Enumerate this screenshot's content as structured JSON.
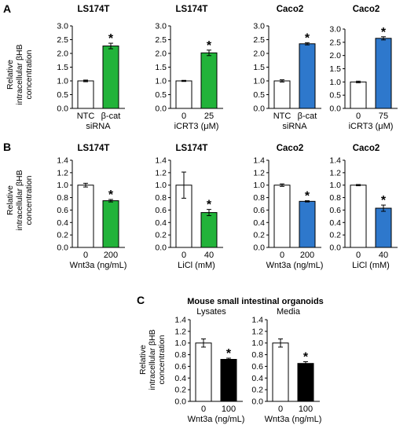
{
  "figure": {
    "panel_letters": [
      "A",
      "B",
      "C"
    ],
    "ylabel_lines": [
      "Relative",
      "intracellular βHB",
      "concentration"
    ],
    "panel_c_title": "Mouse small intestinal organoids"
  },
  "chart_data": [
    {
      "panel": "A",
      "type": "bar",
      "title": "LS174T",
      "subtitle": "",
      "ylim": [
        0,
        3.0
      ],
      "yticks": [
        "0.0",
        "0.5",
        "1.0",
        "1.5",
        "2.0",
        "2.5",
        "3.0"
      ],
      "categories": [
        "NTC",
        "β-cat"
      ],
      "xlabel": "siRNA",
      "values": [
        1.0,
        2.27
      ],
      "errors": [
        0.03,
        0.1
      ],
      "colors": [
        "#ffffff",
        "#22b33a"
      ],
      "significance": [
        false,
        true
      ]
    },
    {
      "panel": "A",
      "type": "bar",
      "title": "LS174T",
      "subtitle": "",
      "ylim": [
        0,
        3.0
      ],
      "yticks": [
        "0.0",
        "0.5",
        "1.0",
        "1.5",
        "2.0",
        "2.5",
        "3.0"
      ],
      "categories": [
        "0",
        "25"
      ],
      "xlabel": "iCRT3 (μM)",
      "values": [
        1.0,
        2.02
      ],
      "errors": [
        0.02,
        0.1
      ],
      "colors": [
        "#ffffff",
        "#22b33a"
      ],
      "significance": [
        false,
        true
      ]
    },
    {
      "panel": "A",
      "type": "bar",
      "title": "Caco2",
      "subtitle": "",
      "ylim": [
        0,
        3.0
      ],
      "yticks": [
        "0.0",
        "0.5",
        "1.0",
        "1.5",
        "2.0",
        "2.5",
        "3.0"
      ],
      "categories": [
        "NTC",
        "β-cat"
      ],
      "xlabel": "siRNA",
      "values": [
        1.0,
        2.35
      ],
      "errors": [
        0.04,
        0.04
      ],
      "colors": [
        "#ffffff",
        "#2e78cc"
      ],
      "significance": [
        false,
        true
      ]
    },
    {
      "panel": "A",
      "type": "bar",
      "title": "Caco2",
      "subtitle": "",
      "ylim": [
        0,
        3.0
      ],
      "yticks": [
        "0.0",
        "0.5",
        "1.0",
        "1.5",
        "2.0",
        "2.5",
        "3.0"
      ],
      "categories": [
        "0",
        "75"
      ],
      "xlabel": "iCRT3 (μM)",
      "values": [
        1.0,
        2.65
      ],
      "errors": [
        0.03,
        0.06
      ],
      "colors": [
        "#ffffff",
        "#2e78cc"
      ],
      "significance": [
        false,
        true
      ]
    },
    {
      "panel": "B",
      "type": "bar",
      "title": "LS174T",
      "subtitle": "",
      "ylim": [
        0,
        1.4
      ],
      "yticks": [
        "0.0",
        "0.2",
        "0.4",
        "0.6",
        "0.8",
        "1.0",
        "1.2",
        "1.4"
      ],
      "categories": [
        "0",
        "200"
      ],
      "xlabel": "Wnt3a (ng/mL)",
      "values": [
        1.0,
        0.75
      ],
      "errors": [
        0.03,
        0.02
      ],
      "colors": [
        "#ffffff",
        "#22b33a"
      ],
      "significance": [
        false,
        true
      ]
    },
    {
      "panel": "B",
      "type": "bar",
      "title": "LS174T",
      "subtitle": "",
      "ylim": [
        0,
        1.4
      ],
      "yticks": [
        "0.0",
        "0.2",
        "0.4",
        "0.6",
        "0.8",
        "1.0",
        "1.2",
        "1.4"
      ],
      "categories": [
        "0",
        "40"
      ],
      "xlabel": "LiCl (mM)",
      "values": [
        1.0,
        0.56
      ],
      "errors": [
        0.21,
        0.05
      ],
      "colors": [
        "#ffffff",
        "#22b33a"
      ],
      "significance": [
        false,
        true
      ]
    },
    {
      "panel": "B",
      "type": "bar",
      "title": "Caco2",
      "subtitle": "",
      "ylim": [
        0,
        1.4
      ],
      "yticks": [
        "0.0",
        "0.2",
        "0.4",
        "0.6",
        "0.8",
        "1.0",
        "1.2",
        "1.4"
      ],
      "categories": [
        "0",
        "200"
      ],
      "xlabel": "Wnt3a (ng/mL)",
      "values": [
        1.0,
        0.74
      ],
      "errors": [
        0.02,
        0.01
      ],
      "colors": [
        "#ffffff",
        "#2e78cc"
      ],
      "significance": [
        false,
        true
      ]
    },
    {
      "panel": "B",
      "type": "bar",
      "title": "Caco2",
      "subtitle": "",
      "ylim": [
        0,
        1.4
      ],
      "yticks": [
        "0.0",
        "0.2",
        "0.4",
        "0.6",
        "0.8",
        "1.0",
        "1.2",
        "1.4"
      ],
      "categories": [
        "0",
        "40"
      ],
      "xlabel": "LiCl (mM)",
      "values": [
        1.0,
        0.63
      ],
      "errors": [
        0.01,
        0.05
      ],
      "colors": [
        "#ffffff",
        "#2e78cc"
      ],
      "significance": [
        false,
        true
      ]
    },
    {
      "panel": "C",
      "type": "bar",
      "title": "",
      "subtitle": "Lysates",
      "ylim": [
        0,
        1.4
      ],
      "yticks": [
        "0.0",
        "0.2",
        "0.4",
        "0.6",
        "0.8",
        "1.0",
        "1.2",
        "1.4"
      ],
      "categories": [
        "0",
        "100"
      ],
      "xlabel": "Wnt3a (ng/mL)",
      "values": [
        1.0,
        0.72
      ],
      "errors": [
        0.07,
        0.02
      ],
      "colors": [
        "#ffffff",
        "#000000"
      ],
      "significance": [
        false,
        true
      ]
    },
    {
      "panel": "C",
      "type": "bar",
      "title": "",
      "subtitle": "Media",
      "ylim": [
        0,
        1.4
      ],
      "yticks": [
        "0.0",
        "0.2",
        "0.4",
        "0.6",
        "0.8",
        "1.0",
        "1.2",
        "1.4"
      ],
      "categories": [
        "0",
        "100"
      ],
      "xlabel": "Wnt3a (ng/mL)",
      "values": [
        1.0,
        0.65
      ],
      "errors": [
        0.07,
        0.03
      ],
      "colors": [
        "#ffffff",
        "#000000"
      ],
      "significance": [
        false,
        true
      ]
    }
  ]
}
